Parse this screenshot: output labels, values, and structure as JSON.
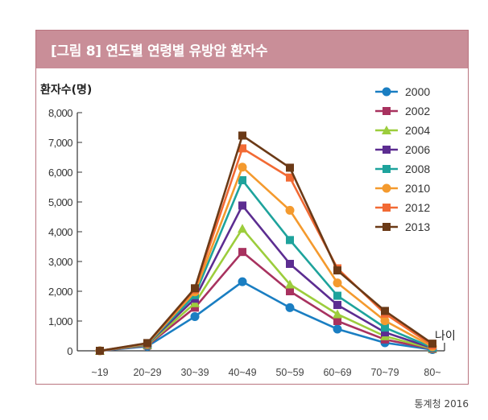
{
  "figure": {
    "title": "[그림 8] 연도별 연령별 유방암 환자수",
    "source": "통계청 2016"
  },
  "colors": {
    "frame": "#b9747f",
    "title_bg": "#c98e98"
  },
  "chart_data": {
    "type": "line",
    "title": "[그림 8] 연도별 연령별 유방암 환자수",
    "ylabel": "환자수(명)",
    "xlabel": "나이",
    "ylim": [
      0,
      8000
    ],
    "yticks": [
      0,
      1000,
      2000,
      3000,
      4000,
      5000,
      6000,
      7000,
      8000
    ],
    "ytick_labels": [
      "0",
      "1,000",
      "2,000",
      "3,000",
      "4,000",
      "5,000",
      "6,000",
      "7,000",
      "8,000"
    ],
    "categories": [
      "~19",
      "20~29",
      "30~39",
      "40~49",
      "50~59",
      "60~69",
      "70~79",
      "80~"
    ],
    "legend_position": "top-right",
    "series": [
      {
        "name": "2000",
        "color": "#1a7ec2",
        "marker": "circle",
        "values": [
          0,
          150,
          1150,
          2320,
          1450,
          730,
          270,
          40
        ]
      },
      {
        "name": "2002",
        "color": "#a8325f",
        "marker": "square",
        "values": [
          0,
          180,
          1450,
          3320,
          2000,
          1000,
          380,
          60
        ]
      },
      {
        "name": "2004",
        "color": "#9ccd3c",
        "marker": "triangle",
        "values": [
          0,
          200,
          1600,
          4100,
          2230,
          1230,
          490,
          70
        ]
      },
      {
        "name": "2006",
        "color": "#5c2d91",
        "marker": "square",
        "values": [
          0,
          220,
          1750,
          4880,
          2920,
          1540,
          620,
          90
        ]
      },
      {
        "name": "2008",
        "color": "#1ea39c",
        "marker": "square",
        "values": [
          0,
          230,
          1870,
          5730,
          3720,
          1850,
          780,
          110
        ]
      },
      {
        "name": "2010",
        "color": "#f49a2e",
        "marker": "circle",
        "values": [
          0,
          240,
          1980,
          6170,
          4720,
          2280,
          1010,
          140
        ]
      },
      {
        "name": "2012",
        "color": "#f26a34",
        "marker": "square",
        "values": [
          0,
          250,
          2060,
          6800,
          5820,
          2770,
          1250,
          180
        ]
      },
      {
        "name": "2013",
        "color": "#6b3a17",
        "marker": "square",
        "values": [
          0,
          260,
          2100,
          7230,
          6150,
          2700,
          1340,
          240
        ]
      }
    ]
  }
}
